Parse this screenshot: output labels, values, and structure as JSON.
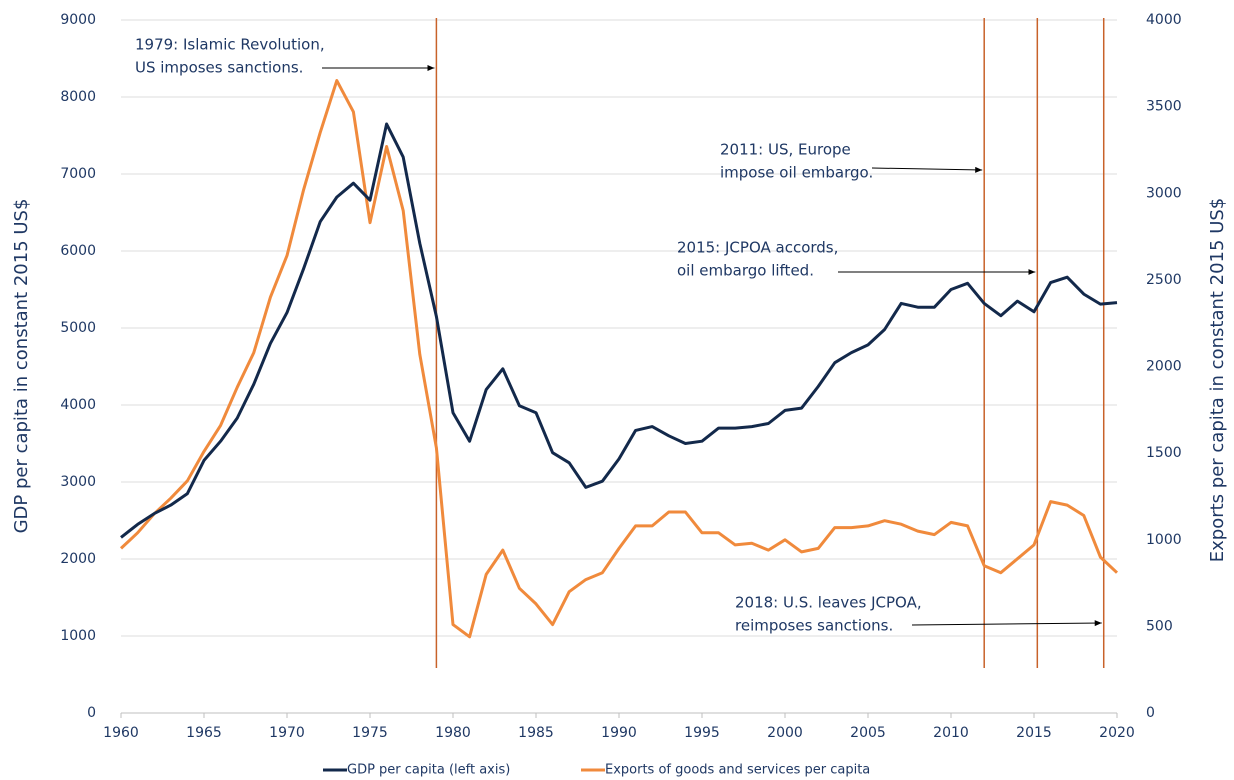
{
  "chart_data": {
    "type": "line",
    "x": [
      1960,
      1961,
      1962,
      1963,
      1964,
      1965,
      1966,
      1967,
      1968,
      1969,
      1970,
      1971,
      1972,
      1973,
      1974,
      1975,
      1976,
      1977,
      1978,
      1979,
      1980,
      1981,
      1982,
      1983,
      1984,
      1985,
      1986,
      1987,
      1988,
      1989,
      1990,
      1991,
      1992,
      1993,
      1994,
      1995,
      1996,
      1997,
      1998,
      1999,
      2000,
      2001,
      2002,
      2003,
      2004,
      2005,
      2006,
      2007,
      2008,
      2009,
      2010,
      2011,
      2012,
      2013,
      2014,
      2015,
      2016,
      2017,
      2018,
      2019,
      2020
    ],
    "series": [
      {
        "name": "GDP per capita (left axis)",
        "color": "#13294b",
        "axis": "y",
        "values": [
          2280,
          2450,
          2590,
          2700,
          2850,
          3280,
          3530,
          3830,
          4270,
          4800,
          5200,
          5770,
          6380,
          6700,
          6880,
          6660,
          7650,
          7220,
          6100,
          5150,
          3900,
          3530,
          4200,
          4470,
          3990,
          3900,
          3380,
          3250,
          2930,
          3010,
          3300,
          3670,
          3720,
          3600,
          3500,
          3530,
          3700,
          3700,
          3720,
          3760,
          3930,
          3960,
          4240,
          4550,
          4680,
          4780,
          4980,
          5320,
          5270,
          5270,
          5500,
          5580,
          5320,
          5160,
          5350,
          5210,
          5590,
          5660,
          5440,
          5310,
          5330
        ]
      },
      {
        "name": "Exports of goods and services per capita",
        "color": "#f08a3c",
        "axis": "y2",
        "values": [
          950,
          1040,
          1150,
          1240,
          1340,
          1510,
          1660,
          1880,
          2080,
          2400,
          2640,
          3020,
          3350,
          3650,
          3470,
          2830,
          3270,
          2900,
          2070,
          1530,
          510,
          440,
          800,
          940,
          720,
          630,
          510,
          700,
          770,
          810,
          950,
          1080,
          1080,
          1160,
          1160,
          1040,
          1040,
          970,
          980,
          940,
          1000,
          930,
          950,
          1070,
          1070,
          1080,
          1110,
          1090,
          1050,
          1030,
          1100,
          1080,
          850,
          810,
          890,
          970,
          1220,
          1200,
          1140,
          900,
          810
        ]
      }
    ],
    "xlim": [
      1960,
      2020
    ],
    "xticks": [
      1960,
      1965,
      1970,
      1975,
      1980,
      1985,
      1990,
      1995,
      2000,
      2005,
      2010,
      2015,
      2020
    ],
    "ylim": [
      0,
      9000
    ],
    "yticks": [
      0,
      1000,
      2000,
      3000,
      4000,
      5000,
      6000,
      7000,
      8000,
      9000
    ],
    "y2lim": [
      0,
      4000
    ],
    "y2ticks": [
      0,
      500,
      1000,
      1500,
      2000,
      2500,
      3000,
      3500,
      4000
    ],
    "ylabel": "GDP per capita in constant 2015 US$",
    "y2label": "Exports per capita in constant 2015 US$",
    "grid": true,
    "legend": "bottom",
    "vlines": {
      "x": [
        1979,
        2012,
        2015.2,
        2019.2
      ],
      "color": "#c8622a"
    },
    "annotations": [
      {
        "text": [
          "1979: Islamic Revolution,",
          "US imposes sanctions."
        ]
      },
      {
        "text": [
          "2011: US, Europe",
          "impose oil embargo."
        ]
      },
      {
        "text": [
          "2015: JCPOA accords,",
          "oil embargo lifted."
        ]
      },
      {
        "text": [
          "2018: U.S. leaves JCPOA,",
          "reimposes sanctions."
        ]
      }
    ]
  }
}
